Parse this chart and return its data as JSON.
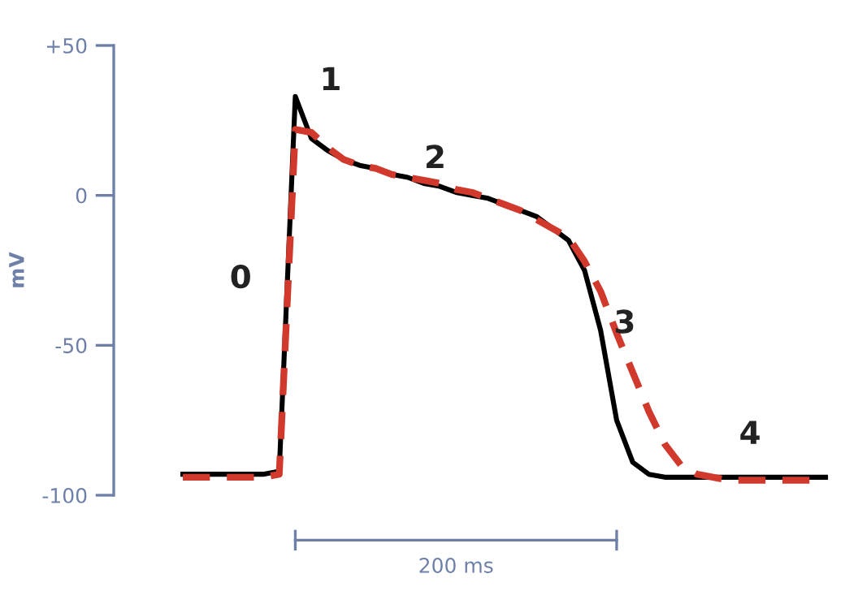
{
  "chart_data": {
    "type": "line",
    "ylabel": "mV",
    "xlabel": "200 ms",
    "ylim": [
      -100,
      50
    ],
    "yticks": [
      {
        "value": 50,
        "label": "+50"
      },
      {
        "value": 0,
        "label": "0"
      },
      {
        "value": -50,
        "label": "-50"
      },
      {
        "value": -100,
        "label": "-100"
      }
    ],
    "tick_labels": "y",
    "grid": false,
    "marker": "none",
    "categories": [
      null,
      null,
      null,
      null,
      null,
      null,
      null,
      null,
      null,
      null,
      null,
      null,
      null,
      null,
      null,
      null,
      null,
      null,
      null,
      null,
      null,
      null,
      null,
      null,
      null,
      null,
      null,
      null,
      null,
      null,
      null,
      null,
      null,
      null,
      null,
      null,
      null,
      null,
      null,
      null,
      null
    ],
    "series": [
      {
        "color": "#000000",
        "line_style": "solid",
        "values": [
          -93,
          -93,
          -93,
          -93,
          -93,
          -93,
          -92,
          33,
          19,
          15,
          12,
          10,
          9,
          7,
          6,
          4,
          3,
          1,
          0,
          -1,
          -3,
          -5,
          -7,
          -11,
          -15,
          -25,
          -45,
          -75,
          -89,
          -93,
          -94,
          -94,
          -94,
          -94,
          -94,
          -94,
          -94,
          -94,
          -94,
          -94,
          -94
        ]
      },
      {
        "color": "#d0392b",
        "line_style": "dashed",
        "values": [
          -94,
          -94,
          -94,
          -94,
          -94,
          -94,
          -93,
          22,
          21,
          16,
          12,
          10,
          9,
          7,
          6,
          5,
          4,
          2,
          1,
          -1,
          -3,
          -5,
          -8,
          -11,
          -14,
          -22,
          -32,
          -46,
          -59,
          -72,
          -83,
          -90,
          -93,
          -94,
          -95,
          -95,
          -95,
          -95,
          -95,
          -95,
          null
        ]
      }
    ],
    "annotations": [
      "0",
      "1",
      "2",
      "3",
      "4"
    ]
  }
}
